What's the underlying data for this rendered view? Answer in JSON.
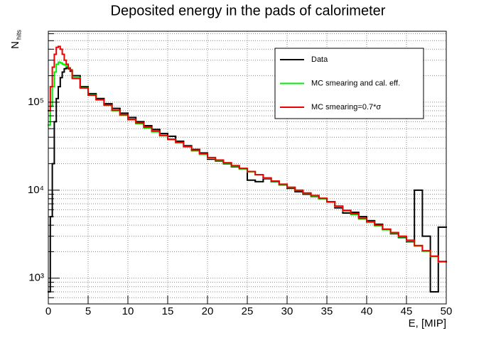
{
  "chart_data": {
    "type": "histogram",
    "title": "Deposited energy in the pads of calorimeter",
    "xlabel": "E, [MIP]",
    "ylabel": "N",
    "ylabel_sub": "hits",
    "log_y": true,
    "grid": true,
    "legend": "upper right",
    "xlim": [
      0,
      50
    ],
    "xticks": [
      0,
      5,
      10,
      15,
      20,
      25,
      30,
      35,
      40,
      45,
      50
    ],
    "ylim": [
      510,
      640000
    ],
    "yticks": [
      {
        "value": 1000,
        "label": "10³"
      },
      {
        "value": 10000,
        "label": "10⁴"
      },
      {
        "value": 100000,
        "label": "10⁵"
      }
    ],
    "yminorticks": [
      600,
      700,
      800,
      900,
      2000,
      3000,
      4000,
      5000,
      6000,
      7000,
      8000,
      9000,
      20000,
      30000,
      40000,
      50000,
      60000,
      70000,
      80000,
      90000,
      200000,
      300000,
      400000,
      500000,
      600000
    ],
    "bins": [
      0,
      0.25,
      0.5,
      0.75,
      1,
      1.25,
      1.5,
      1.75,
      2,
      2.25,
      2.5,
      2.75,
      3,
      4,
      5,
      6,
      7,
      8,
      9,
      10,
      11,
      12,
      13,
      14,
      15,
      16,
      17,
      18,
      19,
      20,
      21,
      22,
      23,
      24,
      25,
      26,
      27,
      28,
      29,
      30,
      31,
      32,
      33,
      34,
      35,
      36,
      37,
      38,
      39,
      40,
      41,
      42,
      43,
      44,
      45,
      46,
      47,
      48,
      49,
      50
    ],
    "series": [
      {
        "name": "Data",
        "color": "#000000",
        "values": [
          700,
          5000,
          20000,
          60000,
          110000,
          150000,
          190000,
          220000,
          240000,
          245000,
          240000,
          225000,
          200000,
          150000,
          125000,
          110000,
          96000,
          85000,
          75000,
          67000,
          60000,
          54000,
          49000,
          44000,
          41000,
          36000,
          32000,
          29000,
          26500,
          22500,
          21500,
          20000,
          18500,
          17500,
          13000,
          12500,
          13500,
          12500,
          11500,
          10500,
          9600,
          9000,
          8500,
          8000,
          7400,
          6300,
          5500,
          5600,
          5000,
          4500,
          4100,
          3600,
          3200,
          2900,
          2600,
          10000,
          3000,
          700,
          3800
        ]
      },
      {
        "name": "MC smearing and cal. eff.",
        "color": "#00ee00",
        "values": [
          55000,
          90000,
          150000,
          220000,
          270000,
          285000,
          280000,
          270000,
          265000,
          255000,
          245000,
          235000,
          190000,
          146000,
          121000,
          106000,
          92000,
          80000,
          71000,
          63000,
          57000,
          51000,
          46000,
          41500,
          37500,
          34500,
          31000,
          28000,
          25500,
          23000,
          21800,
          20300,
          18800,
          17500,
          16200,
          15000,
          13700,
          12600,
          11600,
          10700,
          9900,
          9200,
          8600,
          8000,
          7300,
          6500,
          5800,
          5300,
          4700,
          4300,
          3950,
          3550,
          3250,
          2950,
          2650,
          2320,
          2030,
          1760,
          1530
        ]
      },
      {
        "name": "MC smearing=0.7*σ",
        "color": "#ee0000",
        "values": [
          80000,
          150000,
          250000,
          350000,
          420000,
          430000,
          400000,
          350000,
          300000,
          270000,
          245000,
          230000,
          186000,
          145000,
          120000,
          107000,
          93000,
          81000,
          72000,
          64000,
          58000,
          52000,
          47000,
          42000,
          38000,
          35000,
          31500,
          28500,
          26000,
          23500,
          22000,
          20500,
          19000,
          17700,
          16300,
          15000,
          13800,
          12700,
          11700,
          10800,
          10000,
          9300,
          8700,
          8100,
          7400,
          6600,
          5900,
          5400,
          4800,
          4400,
          4000,
          3600,
          3300,
          3000,
          2700,
          2350,
          2050,
          1780,
          1550
        ]
      }
    ]
  }
}
